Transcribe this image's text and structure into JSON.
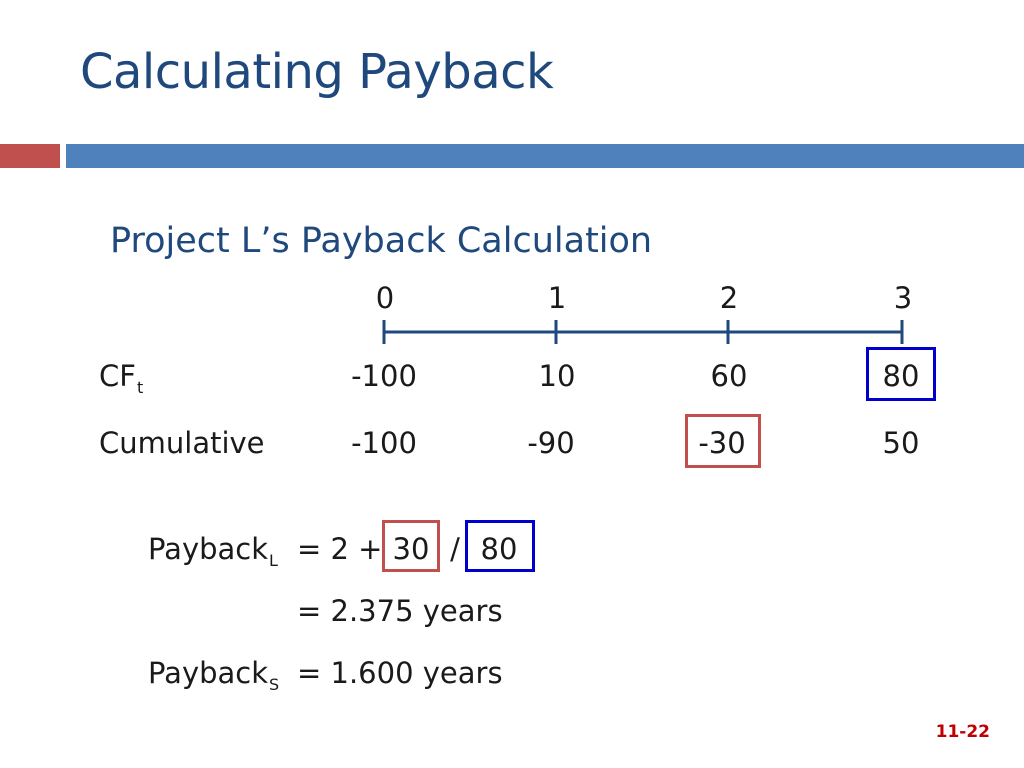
{
  "slide": {
    "title": "Calculating Payback",
    "subtitle": "Project L’s Payback Calculation",
    "page_number": "11-22",
    "colors": {
      "title": "#1f497d",
      "accent_red": "#c0504d",
      "accent_blue": "#4f81bd",
      "highlight_blue": "#0000cc",
      "page_number": "#c00000"
    }
  },
  "timeline": {
    "periods": [
      "0",
      "1",
      "2",
      "3"
    ]
  },
  "table": {
    "cf_label": "CF",
    "cf_sub": "t",
    "cf_values": [
      "-100",
      "10",
      "60",
      "80"
    ],
    "cum_label": "Cumulative",
    "cum_values": [
      "-100",
      "-90",
      "-30",
      "50"
    ]
  },
  "calc": {
    "payback_word": "Payback",
    "sub_L": "L",
    "sub_S": "S",
    "eq_prefix": "= 2 +",
    "numerator": "30",
    "slash": "/",
    "denominator": "80",
    "result_L": "= 2.375 years",
    "result_S": "= 1.600 years"
  }
}
